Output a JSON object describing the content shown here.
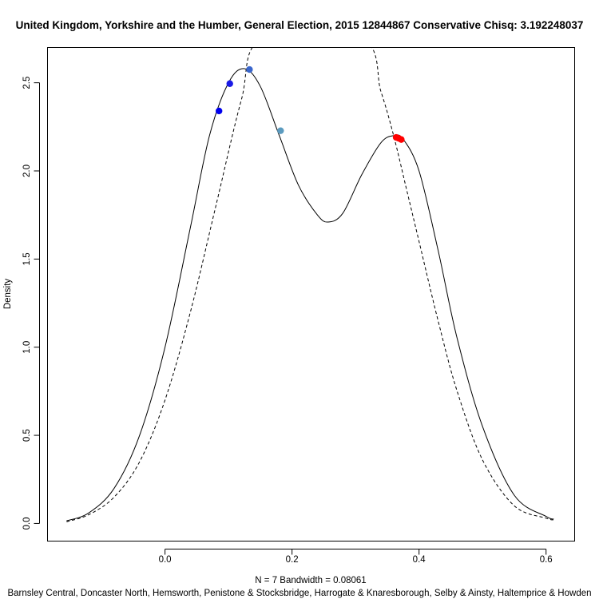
{
  "chart_data": {
    "type": "line",
    "title": "United Kingdom, Yorkshire and the Humber, General Election, 2015 12844867 Conservative Chisq: 3.192248037",
    "ylabel": "Density",
    "xlabel_stats": "N = 7   Bandwidth = 0.08061",
    "xlabel_constituencies": "Barnsley Central, Doncaster North, Hemsworth, Penistone & Stocksbridge, Harrogate & Knaresborough, Selby & Ainsty, Haltemprice & Howden",
    "xlim": [
      -0.185,
      0.645
    ],
    "ylim": [
      -0.1,
      2.7
    ],
    "x_ticks": [
      0.0,
      0.2,
      0.4,
      0.6
    ],
    "x_tick_labels": [
      "0.0",
      "0.2",
      "0.4",
      "0.6"
    ],
    "y_ticks": [
      0.0,
      0.5,
      1.0,
      1.5,
      2.0,
      2.5
    ],
    "y_tick_labels": [
      "0.0",
      "0.5",
      "1.0",
      "1.5",
      "2.0",
      "2.5"
    ],
    "grid": false,
    "density_curve": {
      "style": "solid",
      "color": "#000000",
      "x": [
        -0.155,
        -0.12,
        -0.08,
        -0.04,
        0.0,
        0.04,
        0.07,
        0.1,
        0.125,
        0.15,
        0.18,
        0.21,
        0.24,
        0.257,
        0.28,
        0.31,
        0.34,
        0.36,
        0.375,
        0.4,
        0.43,
        0.46,
        0.5,
        0.55,
        0.6,
        0.612
      ],
      "y": [
        0.015,
        0.06,
        0.2,
        0.5,
        1.0,
        1.68,
        2.2,
        2.5,
        2.58,
        2.48,
        2.2,
        1.92,
        1.75,
        1.71,
        1.76,
        1.98,
        2.16,
        2.2,
        2.18,
        2.0,
        1.55,
        1.05,
        0.55,
        0.16,
        0.04,
        0.025
      ]
    },
    "reference_curve": {
      "style": "dashed",
      "color": "#000000",
      "x": [
        -0.155,
        -0.12,
        -0.08,
        -0.04,
        0.0,
        0.04,
        0.08,
        0.12,
        0.153,
        0.31,
        0.34,
        0.36,
        0.38,
        0.4,
        0.43,
        0.46,
        0.5,
        0.55,
        0.6,
        0.612
      ],
      "y": [
        0.01,
        0.05,
        0.15,
        0.35,
        0.7,
        1.2,
        1.8,
        2.4,
        2.75,
        2.75,
        2.45,
        2.2,
        1.9,
        1.6,
        1.15,
        0.75,
        0.36,
        0.1,
        0.03,
        0.02
      ]
    },
    "points": [
      {
        "x": 0.085,
        "y": 2.34,
        "color": "#0000ee"
      },
      {
        "x": 0.102,
        "y": 2.495,
        "color": "#1a1ae6"
      },
      {
        "x": 0.133,
        "y": 2.575,
        "color": "#3a66cc"
      },
      {
        "x": 0.182,
        "y": 2.228,
        "color": "#5b9bbf"
      },
      {
        "x": 0.364,
        "y": 2.19,
        "color": "#ff0000"
      },
      {
        "x": 0.368,
        "y": 2.185,
        "color": "#ff0000"
      },
      {
        "x": 0.372,
        "y": 2.178,
        "color": "#ff0000"
      }
    ]
  }
}
